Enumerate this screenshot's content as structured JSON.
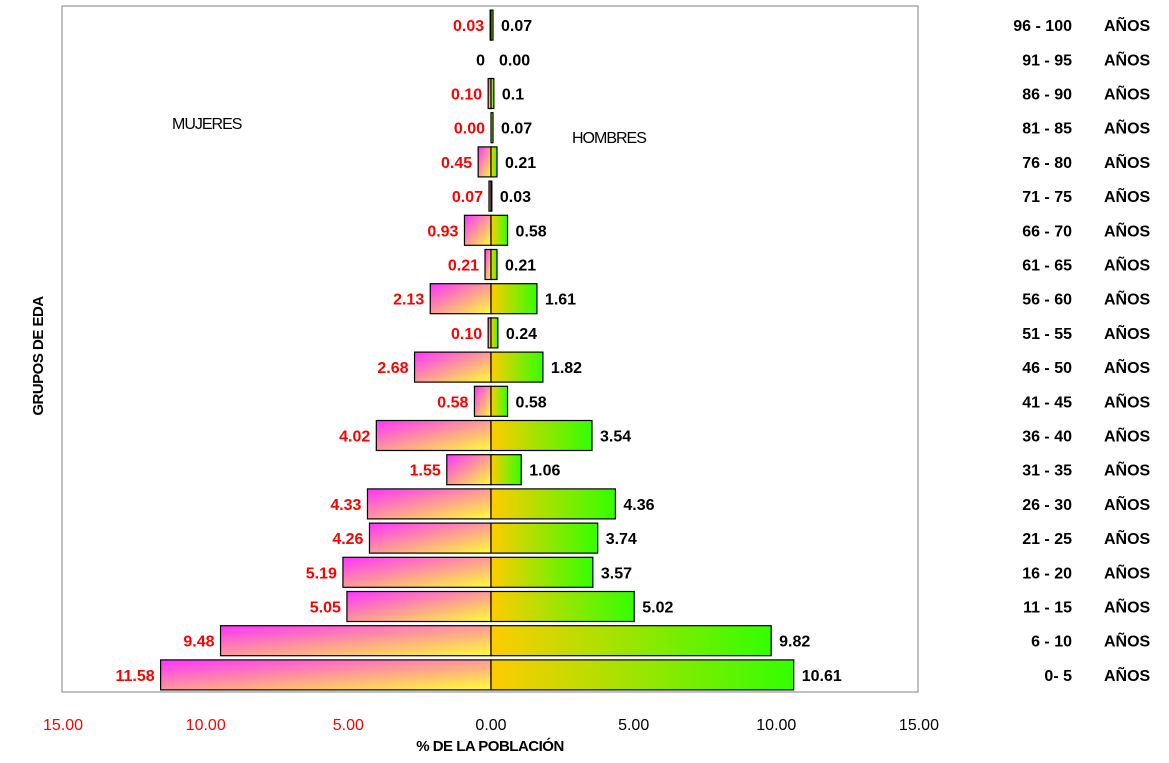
{
  "chart_data": {
    "type": "bar",
    "orientation": "horizontal",
    "xlabel": "% DE LA POBLACIÓN",
    "ylabel": "GRUPOS DE EDA",
    "xlim": [
      -15,
      15
    ],
    "x_ticks": [
      "15.00",
      "10.00",
      "5.00",
      "0.00",
      "5.00",
      "10.00",
      "15.00"
    ],
    "annotations": {
      "left": "MUJERES",
      "right": "HOMBRES"
    },
    "unit_label": "AÑOS",
    "categories": [
      "96 - 100",
      "91 - 95",
      "86 - 90",
      "81 - 85",
      "76 - 80",
      "71 - 75",
      "66 - 70",
      "61 - 65",
      "56 - 60",
      "51 - 55",
      "46 - 50",
      "41 - 45",
      "36 - 40",
      "31 - 35",
      "26 - 30",
      "21 - 25",
      "16 - 20",
      "11 - 15",
      "6 - 10",
      "0-   5"
    ],
    "series": [
      {
        "name": "MUJERES",
        "values": [
          0.03,
          0,
          0.1,
          0.0,
          0.45,
          0.07,
          0.93,
          0.21,
          2.13,
          0.1,
          2.68,
          0.58,
          4.02,
          1.55,
          4.33,
          4.26,
          5.19,
          5.05,
          9.48,
          11.58
        ],
        "labels": [
          "0.03",
          "0",
          "0.10",
          "0.00",
          "0.45",
          "0.07",
          "0.93",
          "0.21",
          "2.13",
          "0.10",
          "2.68",
          "0.58",
          "4.02",
          "1.55",
          "4.33",
          "4.26",
          "5.19",
          "5.05",
          "9.48",
          "11.58"
        ]
      },
      {
        "name": "HOMBRES",
        "values": [
          0.07,
          0.0,
          0.1,
          0.07,
          0.21,
          0.03,
          0.58,
          0.21,
          1.61,
          0.24,
          1.82,
          0.58,
          3.54,
          1.06,
          4.36,
          3.74,
          3.57,
          5.02,
          9.82,
          10.61
        ],
        "labels": [
          "0.07",
          "0.00",
          "0.1",
          "0.07",
          "0.21",
          "0.03",
          "0.58",
          "0.21",
          "1.61",
          "0.24",
          "1.82",
          "0.58",
          "3.54",
          "1.06",
          "4.36",
          "3.74",
          "3.57",
          "5.02",
          "9.82",
          "10.61"
        ]
      }
    ],
    "grid": false,
    "legend": "none",
    "colors": {
      "female_from": "#ff33ff",
      "female_to": "#ffff33",
      "male_from": "#ffcc00",
      "male_to": "#33ff00",
      "female_label": "#ff0000",
      "male_label": "#000000",
      "tick_label": "#ff0000"
    }
  }
}
